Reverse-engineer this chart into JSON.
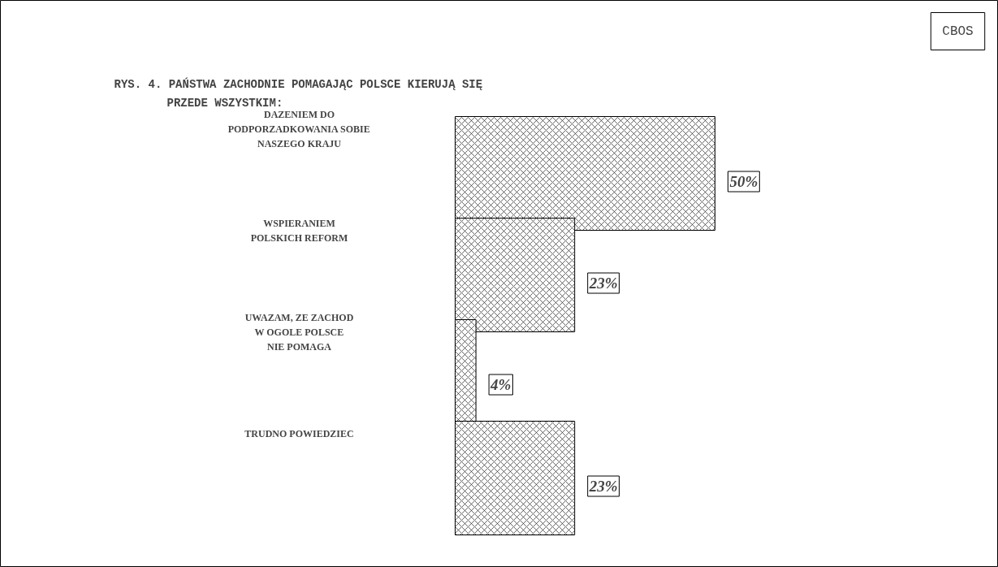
{
  "chart_data": {
    "type": "bar",
    "orientation": "horizontal",
    "title": "RYS. 4. PAŃSTWA ZACHODNIE POMAGAJĄC POLSCE KIERUJĄ SIĘ\nPRZEDE WSZYSTKIM:",
    "categories": [
      "DAZENIEM DO\nPODPORZADKOWANIA SOBIE\nNASZEGO KRAJU",
      "WSPIERANIEM\nPOLSKICH REFORM",
      "UWAZAM, ZE ZACHOD\nW OGOLE POLSCE\nNIE POMAGA",
      "TRUDNO POWIEDZIEC"
    ],
    "values": [
      50,
      23,
      4,
      23
    ],
    "value_labels": [
      "50%",
      "23%",
      "4%",
      "23%"
    ],
    "color": "#ffffff",
    "relative": false,
    "annotations": [
      "CBOS"
    ]
  }
}
